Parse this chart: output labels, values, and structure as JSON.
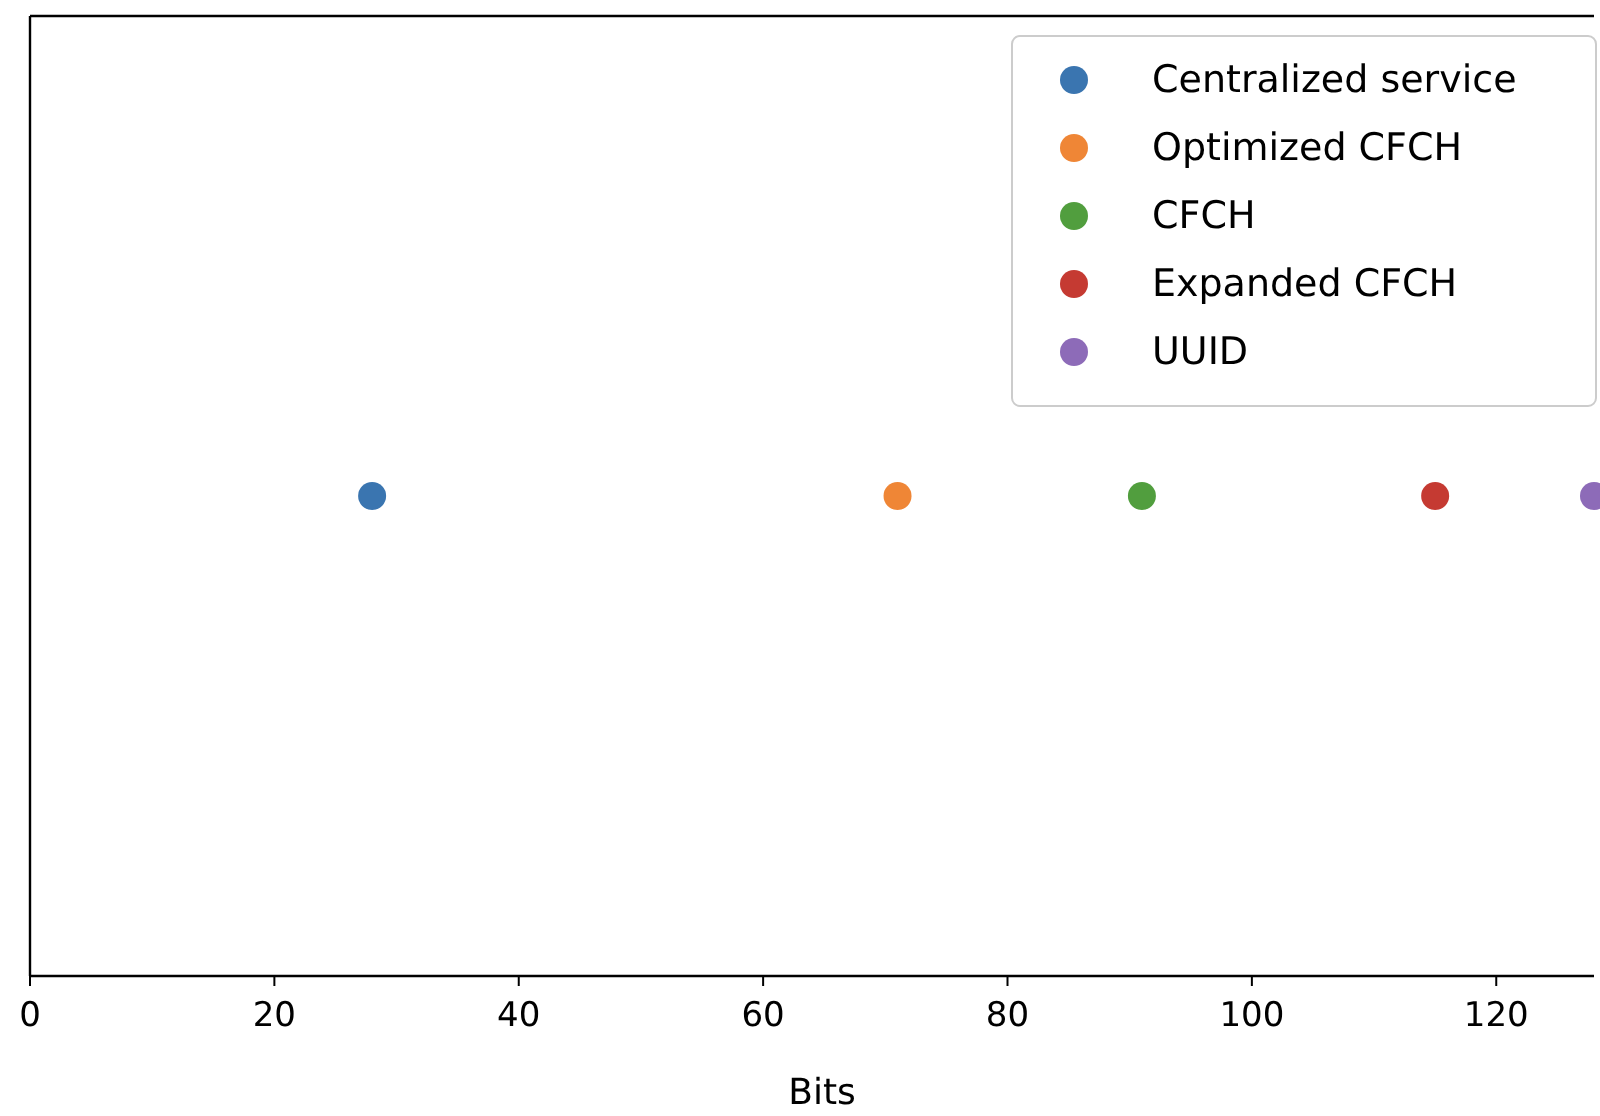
{
  "chart_data": {
    "type": "scatter",
    "orientation": "horizontal",
    "categories": [
      null
    ],
    "xlabel": "Bits",
    "xlim": [
      0,
      128
    ],
    "xticks": [
      0,
      20,
      40,
      60,
      80,
      100,
      120
    ],
    "tick_labels": "x",
    "legend": "top right",
    "marker": "circle",
    "series": [
      {
        "name": "Centralized service",
        "color": "#3a75b0",
        "values": [
          28
        ]
      },
      {
        "name": "Optimized CFCH",
        "color": "#ef8636",
        "values": [
          71
        ]
      },
      {
        "name": "CFCH",
        "color": "#519e3e",
        "values": [
          91
        ]
      },
      {
        "name": "Expanded CFCH",
        "color": "#c53a32",
        "values": [
          115
        ]
      },
      {
        "name": "UUID",
        "color": "#8d6bb8",
        "values": [
          128
        ]
      }
    ]
  }
}
